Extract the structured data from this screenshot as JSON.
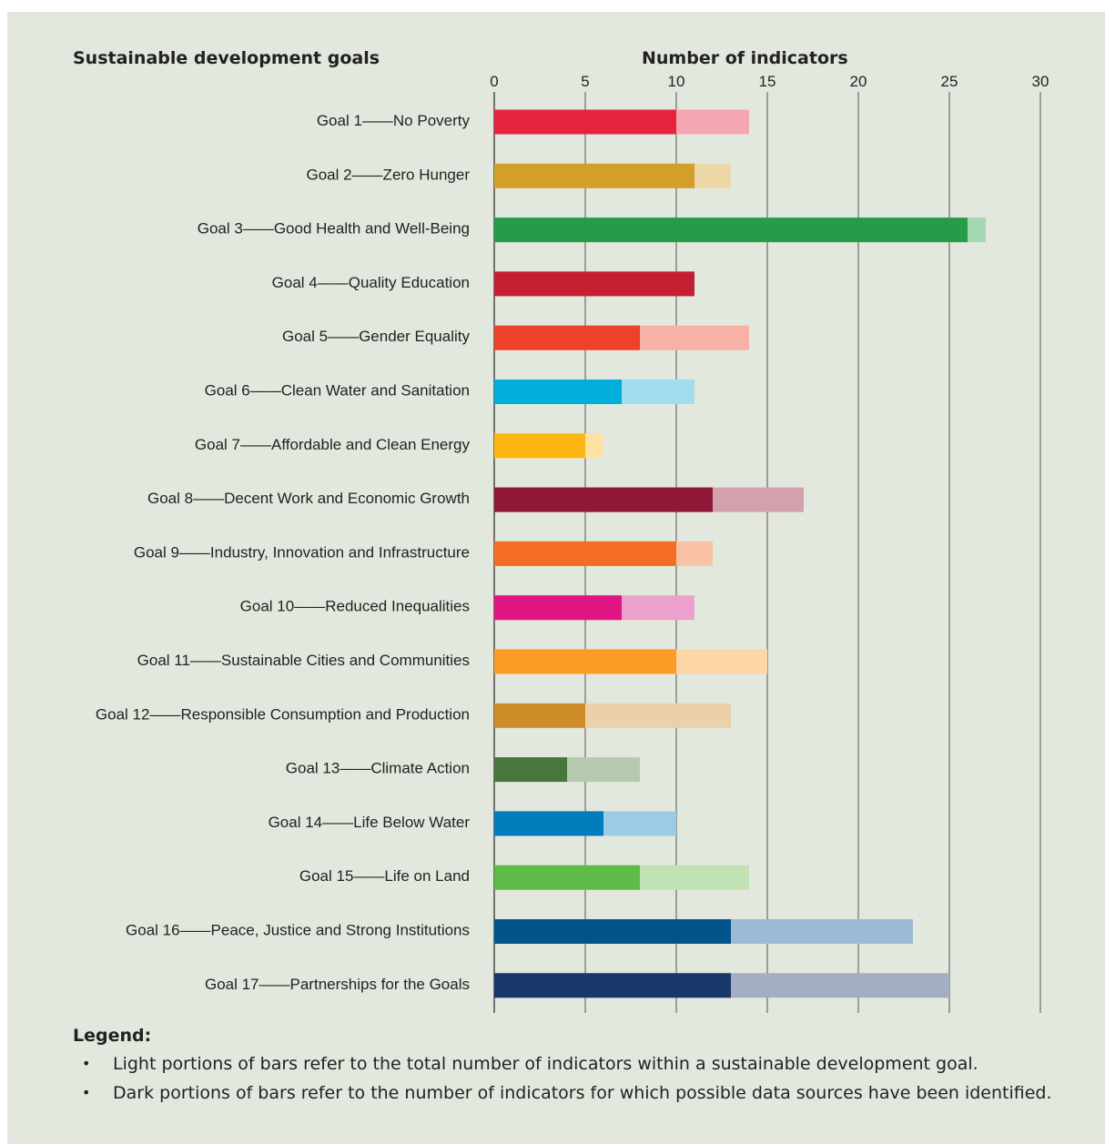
{
  "headers": {
    "goals": "Sustainable development goals",
    "indicators": "Number of indicators"
  },
  "chart_data": {
    "type": "bar",
    "orientation": "horizontal",
    "stacked": "overlay",
    "xlim": [
      0,
      30
    ],
    "xticks": [
      "0",
      "5",
      "10",
      "15",
      "20",
      "25",
      "30"
    ],
    "grid": true,
    "categories": [
      "Goal 1——No Poverty",
      "Goal 2——Zero Hunger",
      "Goal 3——Good Health and Well-Being",
      "Goal 4——Quality Education",
      "Goal 5——Gender Equality",
      "Goal 6——Clean Water and Sanitation",
      "Goal 7——Affordable and Clean Energy",
      "Goal 8——Decent Work and Economic Growth",
      "Goal 9——Industry, Innovation and Infrastructure",
      "Goal 10——Reduced Inequalities",
      "Goal 11——Sustainable Cities and Communities",
      "Goal 12——Responsible Consumption and Production",
      "Goal 13——Climate Action",
      "Goal 14——Life Below Water",
      "Goal 15——Life on Land",
      "Goal 16——Peace, Justice and Strong Institutions",
      "Goal 17——Partnerships for the Goals"
    ],
    "series": [
      {
        "values": [
          10,
          11,
          26,
          11,
          8,
          7,
          5,
          12,
          10,
          7,
          10,
          5,
          4,
          6,
          8,
          13,
          13
        ]
      },
      {
        "values": [
          14,
          13,
          27,
          11,
          14,
          11,
          6,
          17,
          12,
          11,
          15,
          13,
          8,
          10,
          14,
          23,
          25
        ]
      }
    ],
    "colors": {
      "dark": [
        "#e5233d",
        "#d19f2a",
        "#279b48",
        "#c31f33",
        "#ef402b",
        "#00aed9",
        "#fdb713",
        "#8f1838",
        "#f36d24",
        "#e11484",
        "#f99d26",
        "#cf8d2a",
        "#48773e",
        "#007dbc",
        "#5dbb46",
        "#02558b",
        "#183668"
      ],
      "light": [
        "#f4a7b1",
        "#ecd7a6",
        "#a3d8b3",
        "#e4a1aa",
        "#f7b1a6",
        "#a3dcec",
        "#fde2a3",
        "#d3a1ae",
        "#f9c2a4",
        "#eca1cc",
        "#fcd6a7",
        "#ebd0ab",
        "#b6c9b0",
        "#9ccbe6",
        "#c0e2b5",
        "#9dbad4",
        "#a3aec3"
      ],
      "grid": "#555555",
      "background": "#e3e8de"
    }
  },
  "legend": {
    "title": "Legend:",
    "items": [
      "Light portions of bars refer to the total number of indicators within a sustainable development goal.",
      "Dark portions of bars refer to the number of indicators for which possible data sources have been identified."
    ]
  }
}
